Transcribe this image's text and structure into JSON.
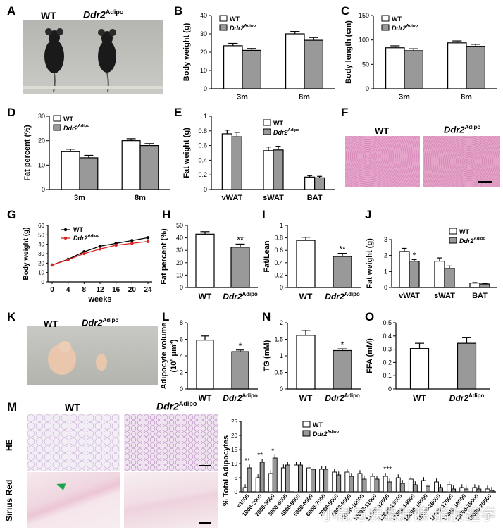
{
  "labels": {
    "wt": "WT",
    "ddr2": "Ddr2",
    "ddr2_sup": "Adipo",
    "he": "HE",
    "sirius": "Sirius Red",
    "weeks": "weeks"
  },
  "panels": [
    "A",
    "B",
    "C",
    "D",
    "E",
    "F",
    "G",
    "H",
    "I",
    "J",
    "K",
    "L",
    "M",
    "N",
    "O"
  ],
  "watermark": "小鼠与胰岛肝胰·脂肪组学",
  "chart_data": [
    {
      "id": "B",
      "type": "bar",
      "ylabel": "Body weight (g)",
      "categories": [
        "3m",
        "8m"
      ],
      "ylim": [
        0,
        40
      ],
      "yticks": [
        0,
        10,
        20,
        30,
        40
      ],
      "series": [
        {
          "name": "WT",
          "values": [
            23.5,
            30
          ]
        },
        {
          "name": "Ddr2Adipo",
          "values": [
            21,
            26.5
          ]
        }
      ],
      "errors": [
        [
          1.3,
          1.3
        ],
        [
          1,
          1.5
        ]
      ]
    },
    {
      "id": "C",
      "type": "bar",
      "ylabel": "Body length (cm)",
      "categories": [
        "3m",
        "8m"
      ],
      "ylim": [
        0,
        150
      ],
      "yticks": [
        0,
        50,
        100,
        150
      ],
      "series": [
        {
          "name": "WT",
          "values": [
            84,
            94
          ]
        },
        {
          "name": "Ddr2Adipo",
          "values": [
            78,
            87
          ]
        }
      ],
      "errors": [
        [
          4,
          4
        ],
        [
          4,
          4
        ]
      ]
    },
    {
      "id": "D",
      "type": "bar",
      "ylabel": "Fat percent (%)",
      "categories": [
        "3m",
        "8m"
      ],
      "ylim": [
        0,
        30
      ],
      "yticks": [
        0,
        10,
        20,
        30
      ],
      "series": [
        {
          "name": "WT",
          "values": [
            15.5,
            20
          ]
        },
        {
          "name": "Ddr2Adipo",
          "values": [
            13,
            18
          ]
        }
      ],
      "errors": [
        [
          1,
          0.8
        ],
        [
          1,
          0.8
        ]
      ]
    },
    {
      "id": "E",
      "type": "bar",
      "ylabel": "Fat weight (g)",
      "categories": [
        "vWAT",
        "sWAT",
        "BAT"
      ],
      "ylim": [
        0,
        1.0
      ],
      "yticks": [
        0.0,
        0.2,
        0.4,
        0.6,
        0.8,
        1.0
      ],
      "series": [
        {
          "name": "WT",
          "values": [
            0.76,
            0.53,
            0.17
          ]
        },
        {
          "name": "Ddr2Adipo",
          "values": [
            0.72,
            0.54,
            0.16
          ]
        }
      ],
      "errors": [
        [
          0.05,
          0.05,
          0.02
        ],
        [
          0.06,
          0.05,
          0.02
        ]
      ]
    },
    {
      "id": "G",
      "type": "line",
      "ylabel": "Body weight (g)",
      "xlabel": "weeks",
      "xticks": [
        0,
        4,
        8,
        12,
        16,
        20,
        24
      ],
      "ylim": [
        0,
        60
      ],
      "yticks": [
        0,
        10,
        20,
        30,
        40,
        50,
        60
      ],
      "series": [
        {
          "name": "WT",
          "x": [
            0,
            4,
            8,
            12,
            16,
            20,
            24
          ],
          "values": [
            18,
            24,
            32,
            38,
            41,
            44,
            47
          ]
        },
        {
          "name": "Ddr2Adipo",
          "x": [
            0,
            4,
            8,
            12,
            16,
            20,
            24
          ],
          "values": [
            18,
            23.5,
            30,
            35,
            39,
            41,
            43
          ]
        }
      ]
    },
    {
      "id": "H",
      "type": "bar",
      "ylabel": "Fat percent (%)",
      "categories": [
        "WT",
        "Ddr2Adipo"
      ],
      "ylim": [
        0,
        50
      ],
      "yticks": [
        0,
        10,
        20,
        30,
        40,
        50
      ],
      "values": [
        43,
        32.5
      ],
      "errors": [
        2,
        2.5
      ],
      "sig": [
        null,
        "**"
      ]
    },
    {
      "id": "I",
      "type": "bar",
      "ylabel": "Fat/Lean",
      "categories": [
        "WT",
        "Ddr2Adipo"
      ],
      "ylim": [
        0,
        1.0
      ],
      "yticks": [
        0.0,
        0.2,
        0.4,
        0.6,
        0.8,
        1.0
      ],
      "values": [
        0.76,
        0.5
      ],
      "errors": [
        0.05,
        0.05
      ],
      "sig": [
        null,
        "**"
      ]
    },
    {
      "id": "J",
      "type": "bar",
      "ylabel": "Fat weight (g)",
      "categories": [
        "vWAT",
        "sWAT",
        "BAT"
      ],
      "ylim": [
        0,
        3
      ],
      "yticks": [
        0,
        1,
        2,
        3
      ],
      "series": [
        {
          "name": "WT",
          "values": [
            2.25,
            1.65,
            0.28
          ]
        },
        {
          "name": "Ddr2Adipo",
          "values": [
            1.65,
            1.2,
            0.22
          ]
        }
      ],
      "errors": [
        [
          0.2,
          0.2,
          0.03
        ],
        [
          0.1,
          0.15,
          0.03
        ]
      ],
      "sig": [
        "*",
        null,
        null
      ]
    },
    {
      "id": "L",
      "type": "bar",
      "ylabel": "Adipocyte volume",
      "ylabel2": "(10",
      "ylabel_sup": "5",
      "ylabel3": " μm",
      "ylabel_sup2": "3",
      "ylabel4": ")",
      "categories": [
        "WT",
        "Ddr2Adipo"
      ],
      "ylim": [
        0,
        8
      ],
      "yticks": [
        0,
        2,
        4,
        6,
        8
      ],
      "values": [
        5.9,
        4.5
      ],
      "errors": [
        0.5,
        0.2
      ],
      "sig": [
        null,
        "*"
      ]
    },
    {
      "id": "N",
      "type": "bar",
      "ylabel": "TG (mM)",
      "categories": [
        "WT",
        "Ddr2Adipo"
      ],
      "ylim": [
        0,
        2.0
      ],
      "yticks": [
        0.0,
        0.5,
        1.0,
        1.5,
        2.0
      ],
      "values": [
        1.62,
        1.16
      ],
      "errors": [
        0.15,
        0.05
      ],
      "sig": [
        null,
        "*"
      ]
    },
    {
      "id": "O",
      "type": "bar",
      "ylabel": "FFA (mM)",
      "categories": [
        "WT",
        "Ddr2Adipo"
      ],
      "ylim": [
        0,
        0.5
      ],
      "yticks": [
        0.0,
        0.1,
        0.2,
        0.3,
        0.4,
        0.5
      ],
      "values": [
        0.305,
        0.345
      ],
      "errors": [
        0.04,
        0.045
      ],
      "sig": [
        null,
        null
      ]
    },
    {
      "id": "M",
      "type": "bar",
      "ylabel": "% Total Adipocytes",
      "ylim": [
        0,
        25
      ],
      "yticks": [
        0,
        5,
        10,
        15,
        20,
        25
      ],
      "categories": [
        "<1000",
        "1000-2000",
        "2000-3000",
        "3000-4000",
        "4000-5000",
        "5000-6000",
        "6000-7000",
        "7000-8000",
        "8000-9000",
        "9000-10000",
        "10000-11000",
        "11000-12000",
        "12000-13000",
        "13000-14000",
        "14000-15000",
        "15000-16000",
        "16000-17000",
        "17000-18000",
        "18000-19000",
        "19000-20000"
      ],
      "series": [
        {
          "name": "WT",
          "values": [
            1.5,
            5,
            6.5,
            8.5,
            9.5,
            8.5,
            8,
            7,
            7,
            6.5,
            5.5,
            5.5,
            5,
            4.5,
            4,
            3.5,
            2.5,
            1.5,
            1.5,
            1
          ]
        },
        {
          "name": "Ddr2Adipo",
          "values": [
            8.5,
            10.5,
            12,
            9.5,
            9.5,
            8,
            8,
            6,
            5.5,
            4.5,
            4.5,
            3.5,
            3,
            2.5,
            2,
            1.5,
            1,
            1,
            1,
            0.5
          ]
        }
      ],
      "sig": [
        "**",
        "**",
        "*",
        null,
        null,
        null,
        null,
        null,
        null,
        null,
        null,
        "***",
        null,
        null,
        null,
        null,
        null,
        null,
        null,
        null
      ]
    }
  ]
}
